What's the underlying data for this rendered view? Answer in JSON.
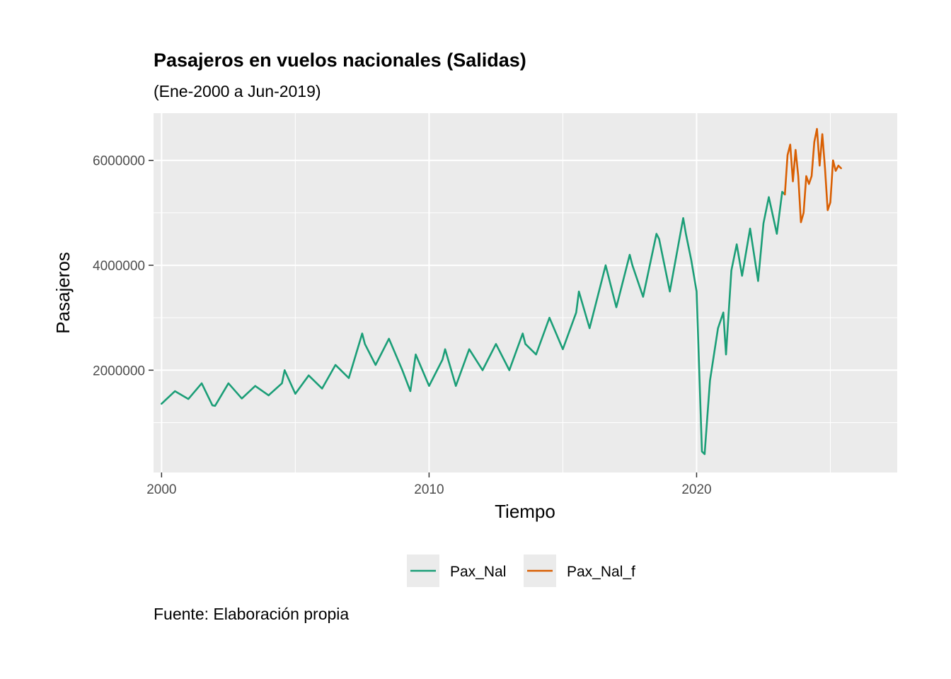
{
  "chart_data": {
    "type": "line",
    "title": "Pasajeros en vuelos nacionales (Salidas)",
    "subtitle": "(Ene-2000 a Jun-2019)",
    "caption": "Fuente: Elaboración propia",
    "xlabel": "Tiempo",
    "ylabel": "Pasajeros",
    "xlim": [
      1999.7,
      2027.5
    ],
    "ylim": [
      50000,
      6900000
    ],
    "x_ticks": [
      2000,
      2010,
      2020
    ],
    "x_tick_labels": [
      "2000",
      "2010",
      "2020"
    ],
    "y_ticks": [
      2000000,
      4000000,
      6000000
    ],
    "y_tick_labels": [
      "2000000",
      "4000000",
      "6000000"
    ],
    "grid": true,
    "legend_position": "bottom",
    "series": [
      {
        "name": "Pax_Nal",
        "color": "#1b9e77",
        "x": [
          2000.0,
          2000.5,
          2001.0,
          2001.5,
          2001.9,
          2002.0,
          2002.5,
          2003.0,
          2003.5,
          2004.0,
          2004.5,
          2004.6,
          2005.0,
          2005.5,
          2006.0,
          2006.5,
          2007.0,
          2007.5,
          2007.6,
          2008.0,
          2008.5,
          2009.0,
          2009.3,
          2009.5,
          2010.0,
          2010.5,
          2010.6,
          2011.0,
          2011.5,
          2012.0,
          2012.5,
          2013.0,
          2013.5,
          2013.6,
          2014.0,
          2014.5,
          2015.0,
          2015.5,
          2015.6,
          2016.0,
          2016.5,
          2016.6,
          2017.0,
          2017.5,
          2017.6,
          2018.0,
          2018.5,
          2018.6,
          2019.0,
          2019.5,
          2019.6,
          2019.8,
          2020.0,
          2020.2,
          2020.3,
          2020.5,
          2020.8,
          2021.0,
          2021.1,
          2021.3,
          2021.5,
          2021.7,
          2022.0,
          2022.3,
          2022.5,
          2022.7,
          2023.0,
          2023.2,
          2023.3
        ],
        "values": [
          1360000,
          1600000,
          1450000,
          1750000,
          1330000,
          1320000,
          1750000,
          1460000,
          1700000,
          1520000,
          1750000,
          2000000,
          1550000,
          1900000,
          1650000,
          2100000,
          1850000,
          2700000,
          2500000,
          2100000,
          2600000,
          2000000,
          1600000,
          2300000,
          1700000,
          2200000,
          2400000,
          1700000,
          2400000,
          2000000,
          2500000,
          2000000,
          2700000,
          2500000,
          2300000,
          3000000,
          2400000,
          3100000,
          3500000,
          2800000,
          3800000,
          4000000,
          3200000,
          4200000,
          4000000,
          3400000,
          4600000,
          4500000,
          3500000,
          4900000,
          4600000,
          4100000,
          3500000,
          450000,
          400000,
          1800000,
          2800000,
          3100000,
          2300000,
          3900000,
          4400000,
          3800000,
          4700000,
          3700000,
          4800000,
          5300000,
          4600000,
          5400000,
          5350000
        ]
      },
      {
        "name": "Pax_Nal_f",
        "color": "#d95f02",
        "x": [
          2023.3,
          2023.4,
          2023.5,
          2023.6,
          2023.7,
          2023.8,
          2023.9,
          2024.0,
          2024.1,
          2024.2,
          2024.3,
          2024.4,
          2024.5,
          2024.6,
          2024.7,
          2024.8,
          2024.9,
          2025.0,
          2025.1,
          2025.2,
          2025.3,
          2025.4
        ],
        "values": [
          5350000,
          6100000,
          6300000,
          5600000,
          6200000,
          5700000,
          4820000,
          5000000,
          5700000,
          5550000,
          5700000,
          6350000,
          6600000,
          5900000,
          6500000,
          5850000,
          5050000,
          5200000,
          6000000,
          5800000,
          5900000,
          5850000
        ]
      }
    ]
  }
}
